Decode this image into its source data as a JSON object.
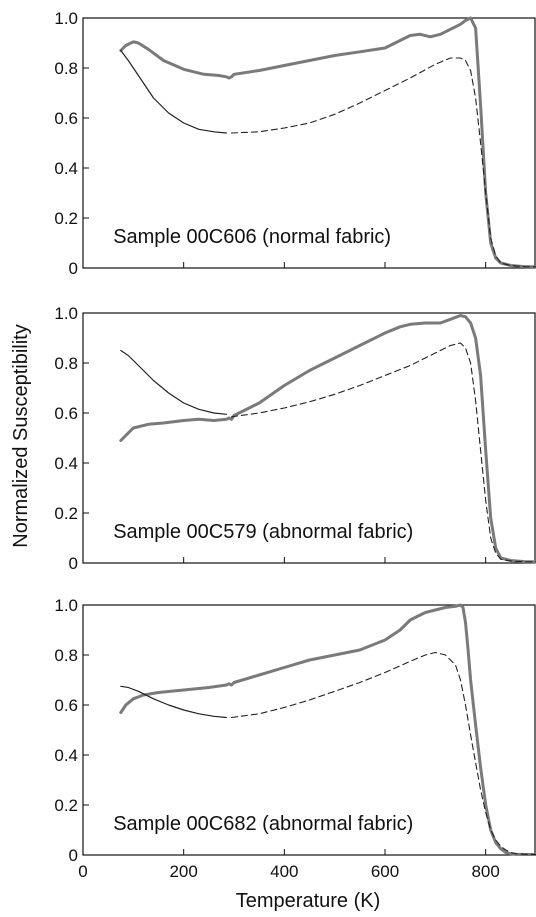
{
  "figure": {
    "ylabel": "Normalized Susceptibility",
    "xlabel": "Temperature (K)"
  },
  "chart_data": [
    {
      "type": "line",
      "annotation": "Sample 00C606 (normal fabric)",
      "xlim": [
        0,
        900
      ],
      "ylim": [
        0,
        1.0
      ],
      "xticks": [
        0,
        200,
        400,
        600,
        800
      ],
      "xtick_labels": [
        "",
        "",
        "",
        "",
        ""
      ],
      "yticks": [
        0,
        0.2,
        0.4,
        0.6,
        0.8,
        1.0
      ],
      "ytick_labels": [
        "0",
        "0.2",
        "0.4",
        "0.6",
        "0.8",
        "1.0"
      ],
      "series": [
        {
          "style": "heating-thick",
          "color": "#7a7a7a",
          "x": [
            75,
            85,
            100,
            110,
            130,
            160,
            200,
            240,
            270,
            285,
            290,
            295,
            300,
            350,
            400,
            450,
            500,
            550,
            600,
            630,
            650,
            670,
            690,
            710,
            730,
            750,
            760,
            770,
            780,
            790,
            800,
            810,
            820,
            830,
            850,
            880,
            900
          ],
          "y": [
            0.87,
            0.89,
            0.905,
            0.9,
            0.875,
            0.83,
            0.795,
            0.775,
            0.77,
            0.765,
            0.76,
            0.765,
            0.775,
            0.79,
            0.81,
            0.83,
            0.85,
            0.865,
            0.88,
            0.91,
            0.93,
            0.935,
            0.925,
            0.935,
            0.955,
            0.975,
            0.99,
            1.0,
            0.96,
            0.65,
            0.3,
            0.1,
            0.04,
            0.02,
            0.01,
            0.005,
            0.005
          ]
        },
        {
          "style": "cooling-thin",
          "color": "#222222",
          "x": [
            75,
            90,
            110,
            140,
            170,
            200,
            230,
            260,
            285
          ],
          "y": [
            0.87,
            0.83,
            0.77,
            0.68,
            0.62,
            0.58,
            0.555,
            0.545,
            0.54
          ]
        },
        {
          "style": "cooling-dashed",
          "color": "#222222",
          "x": [
            295,
            350,
            400,
            450,
            500,
            550,
            600,
            650,
            700,
            730,
            750,
            760,
            770,
            780,
            790,
            800,
            810,
            820,
            830,
            850,
            880,
            900
          ],
          "y": [
            0.54,
            0.545,
            0.56,
            0.58,
            0.615,
            0.66,
            0.71,
            0.76,
            0.815,
            0.84,
            0.84,
            0.83,
            0.79,
            0.68,
            0.5,
            0.3,
            0.12,
            0.05,
            0.02,
            0.01,
            0.005,
            0.005
          ]
        }
      ]
    },
    {
      "type": "line",
      "annotation": "Sample 00C579 (abnormal fabric)",
      "xlim": [
        0,
        900
      ],
      "ylim": [
        0,
        1.0
      ],
      "xticks": [
        0,
        200,
        400,
        600,
        800
      ],
      "xtick_labels": [
        "",
        "",
        "",
        "",
        ""
      ],
      "yticks": [
        0,
        0.2,
        0.4,
        0.6,
        0.8,
        1.0
      ],
      "ytick_labels": [
        "0",
        "0.2",
        "0.4",
        "0.6",
        "0.8",
        "1.0"
      ],
      "series": [
        {
          "style": "heating-thick",
          "color": "#7a7a7a",
          "x": [
            75,
            85,
            100,
            130,
            160,
            200,
            230,
            260,
            285,
            290,
            295,
            300,
            320,
            350,
            400,
            450,
            500,
            550,
            600,
            630,
            650,
            680,
            710,
            730,
            750,
            760,
            770,
            780,
            790,
            800,
            810,
            820,
            830,
            850,
            880,
            900
          ],
          "y": [
            0.49,
            0.51,
            0.54,
            0.555,
            0.56,
            0.57,
            0.575,
            0.57,
            0.575,
            0.58,
            0.575,
            0.59,
            0.61,
            0.64,
            0.71,
            0.77,
            0.82,
            0.87,
            0.92,
            0.945,
            0.955,
            0.96,
            0.96,
            0.975,
            0.99,
            0.985,
            0.96,
            0.9,
            0.75,
            0.45,
            0.18,
            0.06,
            0.02,
            0.01,
            0.005,
            0.005
          ]
        },
        {
          "style": "cooling-thin",
          "color": "#222222",
          "x": [
            75,
            90,
            110,
            140,
            170,
            200,
            230,
            260,
            285
          ],
          "y": [
            0.85,
            0.83,
            0.79,
            0.73,
            0.68,
            0.64,
            0.615,
            0.6,
            0.595
          ]
        },
        {
          "style": "cooling-dashed",
          "color": "#222222",
          "x": [
            295,
            350,
            400,
            450,
            500,
            550,
            600,
            650,
            700,
            730,
            750,
            760,
            770,
            780,
            790,
            800,
            810,
            820,
            830,
            850,
            880,
            900
          ],
          "y": [
            0.585,
            0.6,
            0.62,
            0.645,
            0.675,
            0.71,
            0.75,
            0.79,
            0.84,
            0.87,
            0.88,
            0.86,
            0.8,
            0.65,
            0.45,
            0.25,
            0.1,
            0.04,
            0.015,
            0.008,
            0.005,
            0.005
          ]
        }
      ]
    },
    {
      "type": "line",
      "annotation": "Sample 00C682 (abnormal fabric)",
      "xlim": [
        0,
        900
      ],
      "ylim": [
        0,
        1.0
      ],
      "xticks": [
        0,
        200,
        400,
        600,
        800
      ],
      "xtick_labels": [
        "0",
        "200",
        "400",
        "600",
        "800"
      ],
      "yticks": [
        0,
        0.2,
        0.4,
        0.6,
        0.8,
        1.0
      ],
      "ytick_labels": [
        "0",
        "0.2",
        "0.4",
        "0.6",
        "0.8",
        "1.0"
      ],
      "series": [
        {
          "style": "heating-thick",
          "color": "#7a7a7a",
          "x": [
            75,
            85,
            100,
            120,
            150,
            200,
            250,
            285,
            290,
            295,
            300,
            350,
            400,
            450,
            500,
            550,
            600,
            630,
            650,
            680,
            700,
            720,
            740,
            750,
            755,
            760,
            765,
            770,
            780,
            790,
            800,
            810,
            820,
            830,
            840,
            850,
            860,
            880,
            900
          ],
          "y": [
            0.57,
            0.6,
            0.625,
            0.64,
            0.65,
            0.66,
            0.67,
            0.68,
            0.685,
            0.68,
            0.69,
            0.72,
            0.75,
            0.78,
            0.8,
            0.82,
            0.86,
            0.9,
            0.94,
            0.97,
            0.98,
            0.99,
            0.995,
            1.0,
            0.99,
            0.93,
            0.82,
            0.7,
            0.52,
            0.35,
            0.2,
            0.1,
            0.05,
            0.025,
            0.01,
            0.005,
            0.003,
            0.002,
            0.002
          ]
        },
        {
          "style": "cooling-thin",
          "color": "#222222",
          "x": [
            75,
            90,
            110,
            140,
            170,
            200,
            230,
            260,
            285
          ],
          "y": [
            0.675,
            0.67,
            0.655,
            0.625,
            0.6,
            0.58,
            0.565,
            0.555,
            0.55
          ]
        },
        {
          "style": "cooling-dashed",
          "color": "#222222",
          "x": [
            295,
            350,
            400,
            450,
            500,
            550,
            600,
            650,
            680,
            700,
            720,
            740,
            750,
            760,
            770,
            780,
            790,
            800,
            810,
            820,
            830,
            840,
            850,
            860,
            880,
            900
          ],
          "y": [
            0.55,
            0.565,
            0.59,
            0.62,
            0.655,
            0.69,
            0.73,
            0.775,
            0.8,
            0.81,
            0.8,
            0.76,
            0.7,
            0.6,
            0.48,
            0.37,
            0.26,
            0.17,
            0.1,
            0.06,
            0.035,
            0.02,
            0.01,
            0.005,
            0.003,
            0.002
          ]
        }
      ]
    }
  ]
}
